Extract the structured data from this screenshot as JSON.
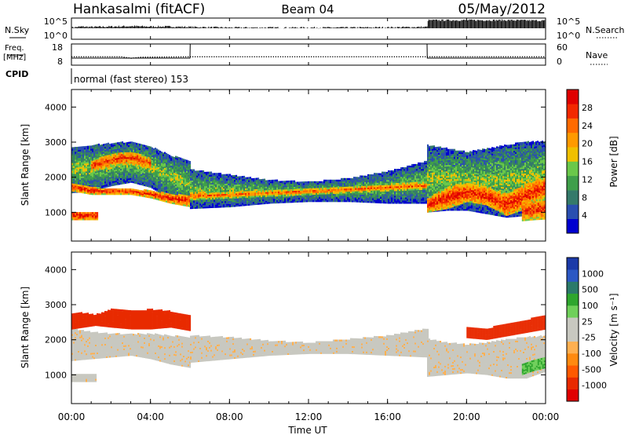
{
  "header": {
    "station": "Hankasalmi (fitACF)",
    "beam": "Beam 04",
    "date": "05/May/2012"
  },
  "top_panels": {
    "nsky_label": "N.Sky",
    "nsky_ticks": [
      "10^5",
      "10^0"
    ],
    "nsearch_label": "N.Search",
    "nsearch_ticks": [
      "10^5",
      "10^0"
    ],
    "freq_label_line1": "Freq.",
    "freq_label_line2": "[MHz]",
    "freq_ticks": [
      "18",
      "8"
    ],
    "nave_label": "Nave",
    "nave_ticks": [
      "60",
      "0"
    ],
    "cpid_label": "CPID",
    "cpid_text": "normal (fast stereo) 153"
  },
  "time_axis": {
    "tick_labels": [
      "00:00",
      "04:00",
      "08:00",
      "12:00",
      "16:00",
      "20:00",
      "00:00"
    ],
    "tick_hours": [
      0,
      4,
      8,
      12,
      16,
      20,
      24
    ],
    "xlabel": "Time UT"
  },
  "colorbars": {
    "power": {
      "label": "Power [dB]",
      "ticks": [
        "28",
        "24",
        "20",
        "16",
        "12",
        "8",
        "4"
      ],
      "colors": [
        "#0000d0",
        "#2a4fb0",
        "#357a6a",
        "#3f9f4a",
        "#6ac84a",
        "#f0c000",
        "#ff9a00",
        "#ff6a00",
        "#f22800",
        "#e00000"
      ]
    },
    "velocity": {
      "label": "Velocity [m s⁻¹]",
      "ticks": [
        "1000",
        "500",
        "100",
        "25",
        "-25",
        "-100",
        "-500",
        "-1000"
      ],
      "colors": [
        "#1b3aa8",
        "#2c58c4",
        "#2b7a6a",
        "#2ea62e",
        "#6fd05a",
        "#c8c8c0",
        "#c8c8c0",
        "#ffb050",
        "#ff8a10",
        "#ff5a00",
        "#e82a00",
        "#e00000"
      ]
    }
  },
  "chart_data": [
    {
      "type": "line",
      "title": "N.Sky / N.Search",
      "xlim": [
        0,
        24
      ],
      "series": [
        {
          "name": "N.Sky",
          "x": [
            0,
            0.5,
            1,
            2,
            3,
            4,
            5,
            6,
            8,
            10,
            12,
            14,
            16,
            18,
            18.01,
            20,
            22,
            24
          ],
          "values": [
            0.55,
            0.6,
            0.58,
            0.6,
            0.62,
            0.6,
            0.6,
            0.58,
            0.55,
            0.55,
            0.55,
            0.55,
            0.56,
            0.58,
            0.9,
            0.9,
            0.9,
            0.88
          ]
        }
      ]
    },
    {
      "type": "line",
      "title": "Freq. / Nave",
      "xlim": [
        0,
        24
      ],
      "series": [
        {
          "name": "Freq.",
          "x": [
            0,
            2.5,
            3,
            3.5,
            6,
            8,
            12,
            16,
            18,
            20,
            24
          ],
          "values": [
            12.2,
            12.2,
            11.5,
            12.0,
            12.2,
            12.2,
            12.2,
            12.2,
            12.2,
            12.2,
            12.2
          ]
        },
        {
          "name": "Nave",
          "x": [
            0,
            6,
            6.01,
            18,
            18.01,
            24
          ],
          "values": [
            20,
            20,
            60,
            60,
            20,
            20
          ]
        }
      ]
    },
    {
      "type": "heatmap",
      "title": "Power [dB]",
      "ylabel": "Slant Range [km]",
      "xlabel": "",
      "xlim": [
        0,
        24
      ],
      "ylim": [
        180,
        4500
      ],
      "y_ticks": [
        1000,
        2000,
        3000,
        4000
      ],
      "layers": [
        {
          "t": [
            0,
            1,
            2,
            3,
            4,
            5,
            6
          ],
          "lo": [
            1550,
            1600,
            1750,
            1850,
            1700,
            1350,
            1150
          ],
          "hi": [
            2850,
            2900,
            2950,
            3000,
            2850,
            2600,
            2450
          ],
          "power": 14
        },
        {
          "t": [
            0,
            1,
            2,
            3,
            4,
            5,
            6
          ],
          "lo": [
            1600,
            1500,
            1500,
            1500,
            1400,
            1250,
            1150
          ],
          "hi": [
            1800,
            1700,
            1650,
            1650,
            1600,
            1500,
            1450
          ],
          "power": 27
        },
        {
          "t": [
            1,
            2,
            2.5,
            3,
            3.5,
            4
          ],
          "lo": [
            2150,
            2300,
            2350,
            2350,
            2300,
            2250
          ],
          "hi": [
            2450,
            2650,
            2700,
            2700,
            2650,
            2500
          ],
          "power": 26
        },
        {
          "t": [
            0,
            0.5,
            1.3
          ],
          "lo": [
            780,
            780,
            780
          ],
          "hi": [
            1000,
            1000,
            1000
          ],
          "power": 28
        },
        {
          "t": [
            6,
            8,
            10,
            12,
            14,
            16,
            18
          ],
          "lo": [
            1100,
            1150,
            1250,
            1300,
            1300,
            1250,
            1250
          ],
          "hi": [
            2200,
            2050,
            1900,
            1850,
            1950,
            2150,
            2450
          ],
          "power": 13
        },
        {
          "t": [
            6,
            8,
            10,
            12,
            14,
            16,
            18
          ],
          "lo": [
            1350,
            1400,
            1450,
            1500,
            1550,
            1600,
            1650
          ],
          "hi": [
            1550,
            1550,
            1600,
            1650,
            1700,
            1780,
            1850
          ],
          "power": 24
        },
        {
          "t": [
            18,
            19,
            20,
            21,
            22,
            23,
            24
          ],
          "lo": [
            1000,
            1050,
            1050,
            950,
            850,
            900,
            1100
          ],
          "hi": [
            2900,
            2800,
            2700,
            2800,
            2900,
            3000,
            3000
          ],
          "power": 14
        },
        {
          "t": [
            18,
            19,
            20,
            21,
            22,
            23,
            24
          ],
          "lo": [
            1000,
            1100,
            1300,
            1200,
            900,
            1100,
            1400
          ],
          "hi": [
            1400,
            1700,
            1800,
            1700,
            1500,
            1800,
            2000
          ],
          "power": 27
        },
        {
          "t": [
            22.8,
            23.4,
            24
          ],
          "lo": [
            750,
            780,
            800
          ],
          "hi": [
            1300,
            1350,
            1400
          ],
          "power": 26
        }
      ]
    },
    {
      "type": "heatmap",
      "title": "Velocity [m s-1]",
      "ylabel": "Slant Range [km]",
      "xlabel": "Time UT",
      "xlim": [
        0,
        24
      ],
      "ylim": [
        180,
        4500
      ],
      "y_ticks": [
        1000,
        2000,
        3000,
        4000
      ],
      "layers": [
        {
          "t": [
            0,
            1,
            2,
            3,
            4,
            5,
            6
          ],
          "lo": [
            1400,
            1450,
            1500,
            1550,
            1450,
            1300,
            1200
          ],
          "hi": [
            2300,
            2200,
            2150,
            2150,
            2150,
            2100,
            2050
          ],
          "velocity": 0
        },
        {
          "t": [
            0,
            0.6,
            1.2,
            2,
            3,
            4,
            5,
            6
          ],
          "lo": [
            2300,
            2350,
            2400,
            2350,
            2300,
            2300,
            2350,
            2250
          ],
          "hi": [
            2750,
            2750,
            2700,
            2850,
            2800,
            2850,
            2800,
            2700
          ],
          "velocity": -300
        },
        {
          "t": [
            0,
            0.5,
            1.2
          ],
          "lo": [
            800,
            800,
            800
          ],
          "hi": [
            1000,
            1000,
            1000
          ],
          "velocity": 0
        },
        {
          "t": [
            6,
            8,
            10,
            12,
            14,
            16,
            18
          ],
          "lo": [
            1350,
            1450,
            1550,
            1600,
            1600,
            1550,
            1500
          ],
          "hi": [
            2100,
            2050,
            1950,
            1900,
            2000,
            2100,
            2300
          ],
          "velocity": 0
        },
        {
          "t": [
            18,
            19,
            20,
            21,
            22,
            23,
            24
          ],
          "lo": [
            950,
            1000,
            1050,
            1000,
            900,
            900,
            1100
          ],
          "hi": [
            2000,
            1900,
            1850,
            1900,
            2000,
            2050,
            2100
          ],
          "velocity": 0
        },
        {
          "t": [
            20,
            21,
            22,
            23,
            24
          ],
          "lo": [
            2050,
            2000,
            2100,
            2200,
            2300
          ],
          "hi": [
            2350,
            2300,
            2450,
            2550,
            2700
          ],
          "velocity": -300
        },
        {
          "t": [
            22.8,
            23.3,
            24
          ],
          "lo": [
            1000,
            1100,
            1200
          ],
          "hi": [
            1300,
            1400,
            1500
          ],
          "velocity": 100
        }
      ]
    }
  ]
}
